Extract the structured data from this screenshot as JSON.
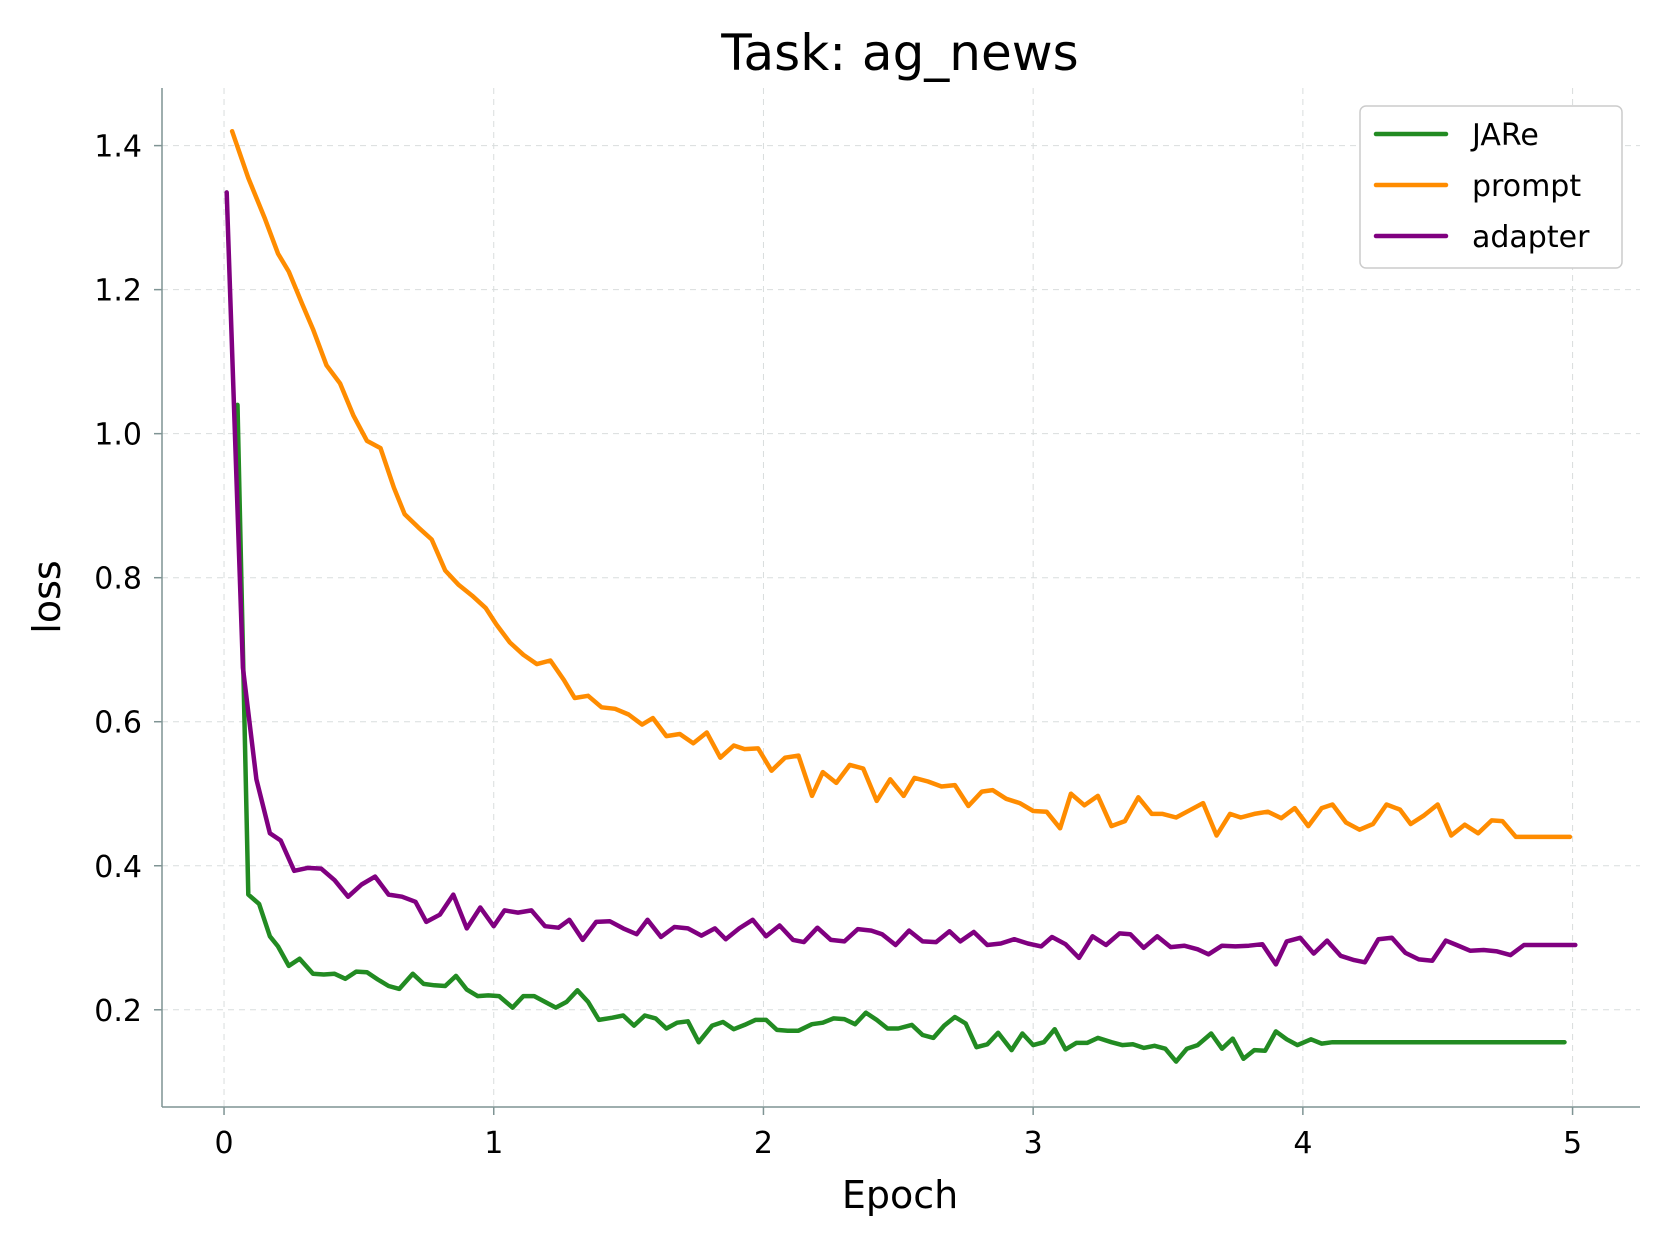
{
  "chart_data": {
    "type": "line",
    "title": "Task: ag_news",
    "xlabel": "Epoch",
    "ylabel": "loss",
    "xlim": [
      -0.23,
      5.25
    ],
    "ylim": [
      0.065,
      1.48
    ],
    "xticks": [
      0,
      1,
      2,
      3,
      4,
      5
    ],
    "yticks": [
      0.2,
      0.4,
      0.6,
      0.8,
      1.0,
      1.2,
      1.4
    ],
    "xtick_labels": [
      "0",
      "1",
      "2",
      "3",
      "4",
      "5"
    ],
    "ytick_labels": [
      "0.2",
      "0.4",
      "0.6",
      "0.8",
      "1.0",
      "1.2",
      "1.4"
    ],
    "grid": true,
    "legend_position": "top-right",
    "series": [
      {
        "name": "JARe",
        "color": "#228b22",
        "x": [
          0.05,
          0.09,
          0.13,
          0.17,
          0.2,
          0.24,
          0.28,
          0.33,
          0.37,
          0.41,
          0.45,
          0.49,
          0.53,
          0.57,
          0.61,
          0.65,
          0.7,
          0.74,
          0.78,
          0.82,
          0.86,
          0.9,
          0.94,
          0.98,
          1.02,
          1.07,
          1.11,
          1.15,
          1.19,
          1.23,
          1.27,
          1.31,
          1.35,
          1.39,
          1.44,
          1.48,
          1.52,
          1.56,
          1.6,
          1.64,
          1.68,
          1.72,
          1.76,
          1.81,
          1.85,
          1.89,
          1.93,
          1.97,
          2.01,
          2.05,
          2.09,
          2.13,
          2.18,
          2.22,
          2.26,
          2.3,
          2.34,
          2.38,
          2.42,
          2.46,
          2.5,
          2.55,
          2.59,
          2.63,
          2.67,
          2.71,
          2.75,
          2.79,
          2.83,
          2.87,
          2.92,
          2.96,
          3.0,
          3.04,
          3.08,
          3.12,
          3.16,
          3.2,
          3.24,
          3.29,
          3.33,
          3.37,
          3.41,
          3.45,
          3.49,
          3.53,
          3.57,
          3.61,
          3.66,
          3.7,
          3.74,
          3.78,
          3.82,
          3.86,
          3.9,
          3.94,
          3.98,
          4.03,
          4.07,
          4.11,
          4.15,
          4.19,
          4.23,
          4.27,
          4.31,
          4.35,
          4.4,
          4.44,
          4.48,
          4.52,
          4.56,
          4.6,
          4.64,
          4.68,
          4.72,
          4.77,
          4.81,
          4.85,
          4.89,
          4.93,
          4.97
        ],
        "values": [
          1.04,
          0.36,
          0.347,
          0.302,
          0.288,
          0.261,
          0.271,
          0.25,
          0.249,
          0.25,
          0.243,
          0.253,
          0.252,
          0.242,
          0.233,
          0.229,
          0.25,
          0.236,
          0.234,
          0.233,
          0.247,
          0.228,
          0.219,
          0.22,
          0.219,
          0.203,
          0.219,
          0.219,
          0.211,
          0.203,
          0.211,
          0.227,
          0.211,
          0.186,
          0.189,
          0.192,
          0.178,
          0.192,
          0.188,
          0.174,
          0.182,
          0.184,
          0.155,
          0.178,
          0.183,
          0.173,
          0.179,
          0.186,
          0.186,
          0.172,
          0.171,
          0.171,
          0.18,
          0.182,
          0.188,
          0.187,
          0.18,
          0.196,
          0.186,
          0.174,
          0.174,
          0.179,
          0.165,
          0.161,
          0.178,
          0.19,
          0.181,
          0.148,
          0.152,
          0.168,
          0.144,
          0.167,
          0.151,
          0.155,
          0.173,
          0.145,
          0.154,
          0.154,
          0.161,
          0.155,
          0.151,
          0.152,
          0.147,
          0.15,
          0.146,
          0.128,
          0.146,
          0.151,
          0.167,
          0.146,
          0.16,
          0.132,
          0.144,
          0.143,
          0.17,
          0.159,
          0.151,
          0.159,
          0.153,
          0.155,
          0.155,
          0.155,
          0.155,
          0.155,
          0.155,
          0.155,
          0.155,
          0.155,
          0.155,
          0.155,
          0.155,
          0.155,
          0.155,
          0.155,
          0.155,
          0.155,
          0.155,
          0.155,
          0.155,
          0.155,
          0.155
        ]
      },
      {
        "name": "prompt",
        "color": "#ff8c00",
        "x": [
          0.03,
          0.09,
          0.15,
          0.2,
          0.24,
          0.29,
          0.33,
          0.38,
          0.43,
          0.48,
          0.53,
          0.58,
          0.63,
          0.67,
          0.72,
          0.77,
          0.82,
          0.87,
          0.92,
          0.97,
          1.01,
          1.06,
          1.11,
          1.16,
          1.21,
          1.26,
          1.3,
          1.35,
          1.4,
          1.45,
          1.5,
          1.55,
          1.59,
          1.64,
          1.69,
          1.74,
          1.79,
          1.84,
          1.89,
          1.93,
          1.98,
          2.03,
          2.08,
          2.13,
          2.18,
          2.22,
          2.27,
          2.32,
          2.37,
          2.42,
          2.47,
          2.52,
          2.56,
          2.61,
          2.66,
          2.71,
          2.76,
          2.81,
          2.85,
          2.9,
          2.95,
          3.0,
          3.05,
          3.1,
          3.14,
          3.19,
          3.24,
          3.29,
          3.34,
          3.39,
          3.44,
          3.48,
          3.53,
          3.58,
          3.63,
          3.68,
          3.73,
          3.77,
          3.82,
          3.87,
          3.92,
          3.97,
          4.02,
          4.07,
          4.11,
          4.16,
          4.21,
          4.26,
          4.31,
          4.36,
          4.4,
          4.45,
          4.5,
          4.55,
          4.6,
          4.65,
          4.7,
          4.74,
          4.79,
          4.84,
          4.89,
          4.94,
          4.99
        ],
        "values": [
          1.42,
          1.355,
          1.3,
          1.25,
          1.225,
          1.18,
          1.145,
          1.095,
          1.07,
          1.025,
          0.99,
          0.98,
          0.925,
          0.888,
          0.87,
          0.853,
          0.81,
          0.79,
          0.775,
          0.758,
          0.735,
          0.71,
          0.693,
          0.68,
          0.685,
          0.658,
          0.633,
          0.636,
          0.62,
          0.618,
          0.61,
          0.596,
          0.605,
          0.58,
          0.583,
          0.57,
          0.585,
          0.55,
          0.567,
          0.562,
          0.563,
          0.532,
          0.55,
          0.553,
          0.497,
          0.53,
          0.515,
          0.54,
          0.535,
          0.49,
          0.52,
          0.497,
          0.522,
          0.517,
          0.51,
          0.512,
          0.483,
          0.503,
          0.505,
          0.493,
          0.487,
          0.476,
          0.475,
          0.452,
          0.5,
          0.484,
          0.497,
          0.455,
          0.462,
          0.495,
          0.472,
          0.472,
          0.467,
          0.477,
          0.487,
          0.442,
          0.472,
          0.467,
          0.472,
          0.475,
          0.466,
          0.48,
          0.455,
          0.48,
          0.485,
          0.46,
          0.45,
          0.458,
          0.485,
          0.478,
          0.458,
          0.47,
          0.485,
          0.442,
          0.457,
          0.445,
          0.463,
          0.462,
          0.44,
          0.44,
          0.44,
          0.44,
          0.44
        ]
      },
      {
        "name": "adapter",
        "color": "#800080",
        "x": [
          0.01,
          0.07,
          0.12,
          0.17,
          0.21,
          0.26,
          0.31,
          0.36,
          0.41,
          0.46,
          0.51,
          0.56,
          0.61,
          0.66,
          0.71,
          0.75,
          0.8,
          0.85,
          0.9,
          0.95,
          1.0,
          1.04,
          1.09,
          1.14,
          1.19,
          1.24,
          1.28,
          1.33,
          1.38,
          1.43,
          1.48,
          1.53,
          1.57,
          1.62,
          1.67,
          1.72,
          1.77,
          1.82,
          1.86,
          1.91,
          1.96,
          2.01,
          2.06,
          2.11,
          2.15,
          2.2,
          2.25,
          2.3,
          2.35,
          2.4,
          2.44,
          2.49,
          2.54,
          2.59,
          2.64,
          2.69,
          2.73,
          2.78,
          2.83,
          2.88,
          2.93,
          2.98,
          3.03,
          3.07,
          3.12,
          3.17,
          3.22,
          3.27,
          3.32,
          3.36,
          3.41,
          3.46,
          3.51,
          3.56,
          3.61,
          3.65,
          3.7,
          3.75,
          3.8,
          3.85,
          3.9,
          3.94,
          3.99,
          4.04,
          4.09,
          4.14,
          4.19,
          4.23,
          4.28,
          4.33,
          4.38,
          4.43,
          4.48,
          4.53,
          4.57,
          4.62,
          4.67,
          4.72,
          4.77,
          4.82,
          4.86,
          4.91,
          4.96,
          5.01
        ],
        "values": [
          1.335,
          0.675,
          0.52,
          0.445,
          0.435,
          0.393,
          0.397,
          0.396,
          0.38,
          0.357,
          0.374,
          0.385,
          0.36,
          0.357,
          0.35,
          0.322,
          0.332,
          0.36,
          0.313,
          0.342,
          0.316,
          0.338,
          0.335,
          0.338,
          0.316,
          0.314,
          0.325,
          0.297,
          0.322,
          0.323,
          0.313,
          0.305,
          0.325,
          0.301,
          0.315,
          0.313,
          0.303,
          0.313,
          0.298,
          0.313,
          0.325,
          0.302,
          0.317,
          0.297,
          0.294,
          0.314,
          0.297,
          0.295,
          0.312,
          0.31,
          0.305,
          0.29,
          0.31,
          0.295,
          0.294,
          0.309,
          0.295,
          0.308,
          0.29,
          0.292,
          0.298,
          0.292,
          0.288,
          0.301,
          0.291,
          0.272,
          0.302,
          0.29,
          0.306,
          0.305,
          0.286,
          0.302,
          0.287,
          0.289,
          0.284,
          0.277,
          0.289,
          0.288,
          0.289,
          0.291,
          0.263,
          0.295,
          0.3,
          0.278,
          0.296,
          0.275,
          0.269,
          0.266,
          0.298,
          0.3,
          0.279,
          0.27,
          0.268,
          0.296,
          0.29,
          0.282,
          0.283,
          0.281,
          0.276,
          0.29,
          0.29,
          0.29,
          0.29,
          0.29
        ]
      }
    ]
  }
}
